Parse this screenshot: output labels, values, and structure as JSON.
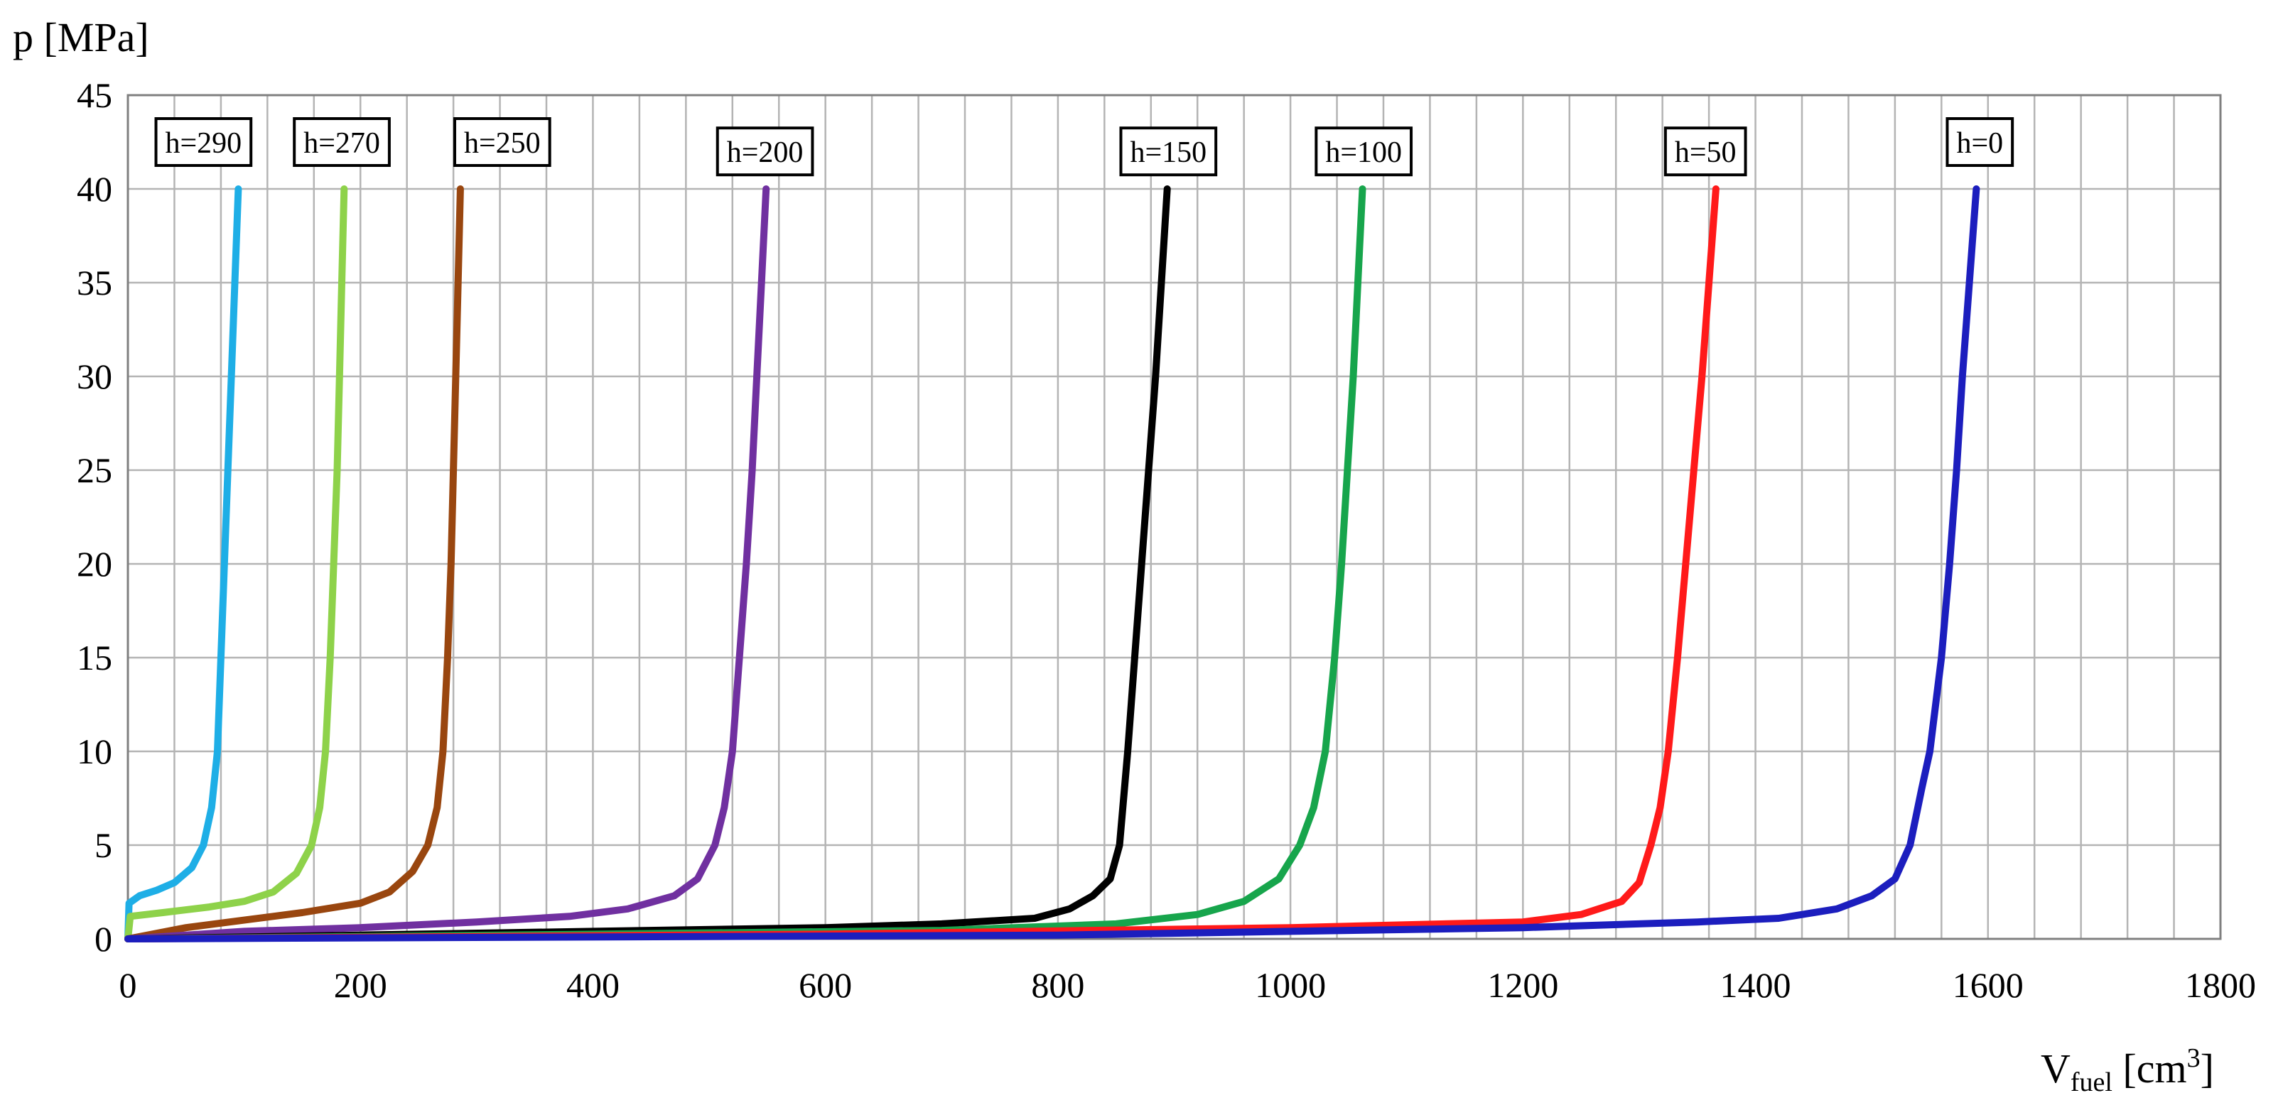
{
  "chart_data": {
    "type": "line",
    "xlabel": "V",
    "xlabel_sub": "fuel",
    "xlabel_unit_open": " [cm",
    "xlabel_unit_sup": "3",
    "xlabel_unit_close": "]",
    "ylabel": "p [MPa]",
    "xlim": [
      0,
      1800
    ],
    "ylim": [
      0,
      45
    ],
    "x_ticks": [
      0,
      200,
      400,
      600,
      800,
      1000,
      1200,
      1400,
      1600,
      1800
    ],
    "y_ticks": [
      0,
      5,
      10,
      15,
      20,
      25,
      30,
      35,
      40,
      45
    ],
    "x_tick_labels": [
      "0",
      "200",
      "400",
      "600",
      "800",
      "1000",
      "1200",
      "1400",
      "1600",
      "1800"
    ],
    "y_tick_labels": [
      "0",
      "5",
      "10",
      "15",
      "20",
      "25",
      "30",
      "35",
      "40",
      "45"
    ],
    "grid": true,
    "series": [
      {
        "name": "h=290",
        "color": "#1eaee6",
        "points": [
          [
            0,
            0
          ],
          [
            1,
            1.9
          ],
          [
            10,
            2.3
          ],
          [
            25,
            2.6
          ],
          [
            40,
            3.0
          ],
          [
            55,
            3.8
          ],
          [
            65,
            5.0
          ],
          [
            72,
            7.0
          ],
          [
            77,
            10.0
          ],
          [
            80,
            15.0
          ],
          [
            83,
            20.0
          ],
          [
            86,
            25.0
          ],
          [
            89,
            30.0
          ],
          [
            92,
            35.0
          ],
          [
            95,
            40.0
          ]
        ]
      },
      {
        "name": "h=270",
        "color": "#8ed24a",
        "points": [
          [
            0,
            0
          ],
          [
            2,
            1.2
          ],
          [
            30,
            1.4
          ],
          [
            70,
            1.7
          ],
          [
            100,
            2.0
          ],
          [
            125,
            2.5
          ],
          [
            145,
            3.5
          ],
          [
            158,
            5.0
          ],
          [
            165,
            7.0
          ],
          [
            170,
            10.0
          ],
          [
            174,
            15.0
          ],
          [
            177,
            20.0
          ],
          [
            180,
            25.0
          ],
          [
            182,
            30.0
          ],
          [
            184,
            35.0
          ],
          [
            186,
            40.0
          ]
        ]
      },
      {
        "name": "h=250",
        "color": "#99460f",
        "points": [
          [
            0,
            0
          ],
          [
            50,
            0.6
          ],
          [
            100,
            1.0
          ],
          [
            150,
            1.4
          ],
          [
            200,
            1.9
          ],
          [
            225,
            2.5
          ],
          [
            245,
            3.6
          ],
          [
            258,
            5.0
          ],
          [
            266,
            7.0
          ],
          [
            271,
            10.0
          ],
          [
            275,
            15.0
          ],
          [
            278,
            20.0
          ],
          [
            280,
            25.0
          ],
          [
            282,
            30.0
          ],
          [
            284,
            35.0
          ],
          [
            286,
            40.0
          ]
        ]
      },
      {
        "name": "h=200",
        "color": "#7030a0",
        "points": [
          [
            0,
            0
          ],
          [
            100,
            0.4
          ],
          [
            200,
            0.6
          ],
          [
            300,
            0.9
          ],
          [
            380,
            1.2
          ],
          [
            430,
            1.6
          ],
          [
            470,
            2.3
          ],
          [
            490,
            3.2
          ],
          [
            505,
            5.0
          ],
          [
            513,
            7.0
          ],
          [
            520,
            10.0
          ],
          [
            526,
            15.0
          ],
          [
            532,
            20.0
          ],
          [
            537,
            25.0
          ],
          [
            541,
            30.0
          ],
          [
            545,
            35.0
          ],
          [
            549,
            40.0
          ]
        ]
      },
      {
        "name": "h=150",
        "color": "#000000",
        "points": [
          [
            0,
            0
          ],
          [
            200,
            0.2
          ],
          [
            400,
            0.4
          ],
          [
            600,
            0.6
          ],
          [
            700,
            0.8
          ],
          [
            780,
            1.1
          ],
          [
            810,
            1.6
          ],
          [
            830,
            2.3
          ],
          [
            845,
            3.2
          ],
          [
            853,
            5.0
          ],
          [
            860,
            10.0
          ],
          [
            866,
            15.0
          ],
          [
            872,
            20.0
          ],
          [
            878,
            25.0
          ],
          [
            884,
            30.0
          ],
          [
            889,
            35.0
          ],
          [
            894,
            40.0
          ]
        ]
      },
      {
        "name": "h=100",
        "color": "#17a54c",
        "points": [
          [
            0,
            0
          ],
          [
            400,
            0.25
          ],
          [
            700,
            0.45
          ],
          [
            850,
            0.8
          ],
          [
            920,
            1.3
          ],
          [
            960,
            2.0
          ],
          [
            990,
            3.2
          ],
          [
            1008,
            5.0
          ],
          [
            1020,
            7.0
          ],
          [
            1030,
            10.0
          ],
          [
            1038,
            15.0
          ],
          [
            1044,
            20.0
          ],
          [
            1049,
            25.0
          ],
          [
            1054,
            30.0
          ],
          [
            1058,
            35.0
          ],
          [
            1062,
            40.0
          ]
        ]
      },
      {
        "name": "h=50",
        "color": "#ff1a1a",
        "points": [
          [
            0,
            0
          ],
          [
            600,
            0.25
          ],
          [
            1000,
            0.6
          ],
          [
            1200,
            0.9
          ],
          [
            1250,
            1.3
          ],
          [
            1285,
            2.0
          ],
          [
            1300,
            3.0
          ],
          [
            1310,
            5.0
          ],
          [
            1318,
            7.0
          ],
          [
            1325,
            10.0
          ],
          [
            1333,
            15.0
          ],
          [
            1340,
            20.0
          ],
          [
            1347,
            25.0
          ],
          [
            1354,
            30.0
          ],
          [
            1360,
            35.0
          ],
          [
            1366,
            40.0
          ]
        ]
      },
      {
        "name": "h=0",
        "color": "#1c1ebe",
        "points": [
          [
            0,
            0
          ],
          [
            800,
            0.2
          ],
          [
            1200,
            0.6
          ],
          [
            1350,
            0.9
          ],
          [
            1420,
            1.1
          ],
          [
            1470,
            1.6
          ],
          [
            1500,
            2.3
          ],
          [
            1520,
            3.2
          ],
          [
            1533,
            5.0
          ],
          [
            1543,
            8.0
          ],
          [
            1550,
            10.0
          ],
          [
            1560,
            15.0
          ],
          [
            1567,
            20.0
          ],
          [
            1573,
            25.0
          ],
          [
            1578,
            30.0
          ],
          [
            1584,
            35.0
          ],
          [
            1590,
            40.0
          ]
        ]
      }
    ],
    "annotations": [
      {
        "text": "h=290",
        "x": 65,
        "y": 42.5
      },
      {
        "text": "h=270",
        "x": 184,
        "y": 42.5
      },
      {
        "text": "h=250",
        "x": 322,
        "y": 42.5
      },
      {
        "text": "h=200",
        "x": 548,
        "y": 42.0
      },
      {
        "text": "h=150",
        "x": 895,
        "y": 42.0
      },
      {
        "text": "h=100",
        "x": 1063,
        "y": 42.0
      },
      {
        "text": "h=50",
        "x": 1357,
        "y": 42.0
      },
      {
        "text": "h=0",
        "x": 1593,
        "y": 42.5
      }
    ]
  }
}
